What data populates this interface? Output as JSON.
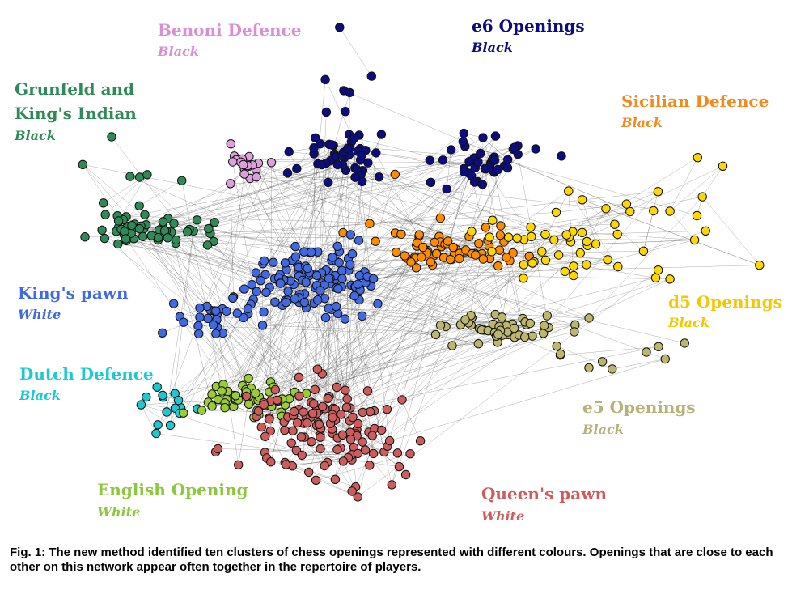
{
  "clusters": [
    {
      "name": "Benoni Defence",
      "side": "Black"
    },
    {
      "name": "e6 Openings",
      "side": "Black"
    },
    {
      "name": "Grunfeld and King's Indian",
      "side": "Black"
    },
    {
      "name": "Sicilian Defence",
      "side": "Black"
    },
    {
      "name": "King's pawn",
      "side": "White"
    },
    {
      "name": "d5 Openings",
      "side": "Black"
    },
    {
      "name": "Dutch Defence",
      "side": "Black"
    },
    {
      "name": "e5 Openings",
      "side": "Black"
    },
    {
      "name": "English Opening",
      "side": "White"
    },
    {
      "name": "Queen's pawn",
      "side": "White"
    }
  ],
  "caption": "Fig. 1: The new method identified ten clusters of chess openings represented with different colours. Openings that are close to each other on this network appear often together in the repertoire of players."
}
